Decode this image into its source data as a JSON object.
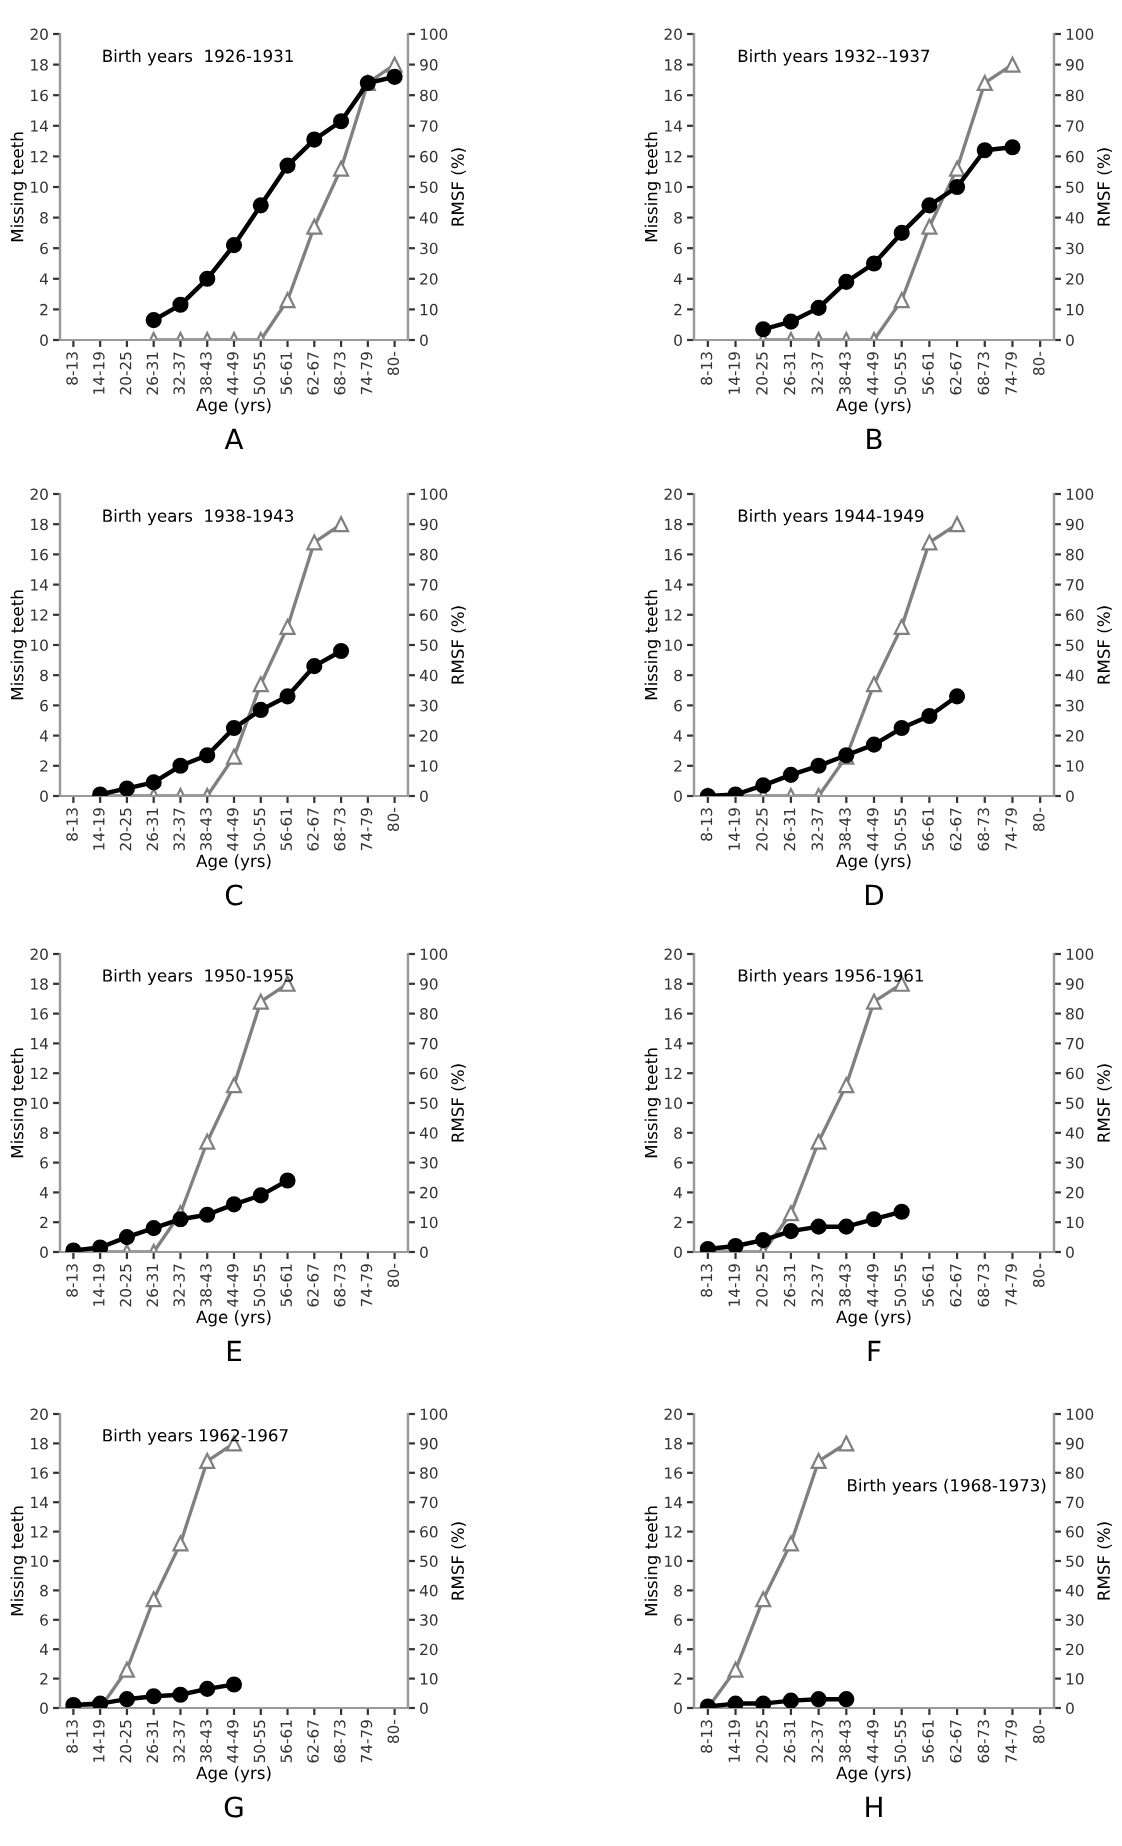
{
  "chart_data": [
    {
      "type": "line",
      "title": "A",
      "annotations": [
        "Birth years  1926-1931"
      ],
      "xlabel": "Age (yrs)",
      "ylabel": "Missing teeth",
      "y2label": "RMSF (%)",
      "categories": [
        "8-13",
        "14-19",
        "20-25",
        "26-31",
        "32-37",
        "38-43",
        "44-49",
        "50-55",
        "56-61",
        "62-67",
        "68-73",
        "74-79",
        "80-"
      ],
      "ylim": [
        0,
        20
      ],
      "yticks": [
        0,
        2,
        4,
        6,
        8,
        10,
        12,
        14,
        16,
        18,
        20
      ],
      "y2lim": [
        0,
        100
      ],
      "y2ticks": [
        0,
        10,
        20,
        30,
        40,
        50,
        60,
        70,
        80,
        90,
        100
      ],
      "grid": false,
      "series": [
        {
          "color": "#808080",
          "axis": "y2",
          "marker": "triangle",
          "values": [
            null,
            null,
            null,
            0,
            0,
            0,
            0,
            0,
            13,
            37,
            56,
            84,
            90
          ]
        },
        {
          "color": "#000000",
          "marker": "circle",
          "values": [
            null,
            null,
            null,
            1.3,
            2.3,
            4.0,
            6.2,
            8.8,
            11.4,
            13.1,
            14.3,
            16.8,
            17.2
          ]
        }
      ]
    },
    {
      "type": "line",
      "title": "B",
      "annotations": [
        "Birth years 1932--1937"
      ],
      "xlabel": "Age (yrs)",
      "ylabel": "Missing teeth",
      "y2label": "RMSF (%)",
      "categories": [
        "8-13",
        "14-19",
        "20-25",
        "26-31",
        "32-37",
        "38-43",
        "44-49",
        "50-55",
        "56-61",
        "62-67",
        "68-73",
        "74-79",
        "80-"
      ],
      "ylim": [
        0,
        20
      ],
      "yticks": [
        0,
        2,
        4,
        6,
        8,
        10,
        12,
        14,
        16,
        18,
        20
      ],
      "y2lim": [
        0,
        100
      ],
      "y2ticks": [
        0,
        10,
        20,
        30,
        40,
        50,
        60,
        70,
        80,
        90,
        100
      ],
      "grid": false,
      "series": [
        {
          "color": "#808080",
          "axis": "y2",
          "marker": "triangle",
          "values": [
            null,
            null,
            0,
            0,
            0,
            0,
            0,
            13,
            37,
            56,
            84,
            90,
            null
          ]
        },
        {
          "color": "#000000",
          "marker": "circle",
          "values": [
            null,
            null,
            0.7,
            1.2,
            2.1,
            3.8,
            5.0,
            7.0,
            8.8,
            10.0,
            12.4,
            12.6,
            null
          ]
        }
      ]
    },
    {
      "type": "line",
      "title": "C",
      "annotations": [
        "Birth years  1938-1943"
      ],
      "xlabel": "Age (yrs)",
      "ylabel": "Missing teeth",
      "y2label": "RMSF (%)",
      "categories": [
        "8-13",
        "14-19",
        "20-25",
        "26-31",
        "32-37",
        "38-43",
        "44-49",
        "50-55",
        "56-61",
        "62-67",
        "68-73",
        "74-79",
        "80-"
      ],
      "ylim": [
        0,
        20
      ],
      "yticks": [
        0,
        2,
        4,
        6,
        8,
        10,
        12,
        14,
        16,
        18,
        20
      ],
      "y2lim": [
        0,
        100
      ],
      "y2ticks": [
        0,
        10,
        20,
        30,
        40,
        50,
        60,
        70,
        80,
        90,
        100
      ],
      "grid": false,
      "series": [
        {
          "color": "#808080",
          "axis": "y2",
          "marker": "triangle",
          "values": [
            null,
            0,
            0,
            0,
            0,
            0,
            13,
            37,
            56,
            84,
            90,
            null,
            null
          ]
        },
        {
          "color": "#000000",
          "marker": "circle",
          "values": [
            null,
            0.1,
            0.5,
            0.9,
            2.0,
            2.7,
            4.5,
            5.7,
            6.6,
            8.6,
            9.6,
            null,
            null
          ]
        }
      ]
    },
    {
      "type": "line",
      "title": "D",
      "annotations": [
        "Birth years 1944-1949"
      ],
      "xlabel": "Age (yrs)",
      "ylabel": "Missing teeth",
      "y2label": "RMSF (%)",
      "categories": [
        "8-13",
        "14-19",
        "20-25",
        "26-31",
        "32-37",
        "38-43",
        "44-49",
        "50-55",
        "56-61",
        "62-67",
        "68-73",
        "74-79",
        "80-"
      ],
      "ylim": [
        0,
        20
      ],
      "yticks": [
        0,
        2,
        4,
        6,
        8,
        10,
        12,
        14,
        16,
        18,
        20
      ],
      "y2lim": [
        0,
        100
      ],
      "y2ticks": [
        0,
        10,
        20,
        30,
        40,
        50,
        60,
        70,
        80,
        90,
        100
      ],
      "grid": false,
      "series": [
        {
          "color": "#808080",
          "axis": "y2",
          "marker": "triangle",
          "values": [
            0,
            0,
            0,
            0,
            0,
            13,
            37,
            56,
            84,
            90,
            null,
            null,
            null
          ]
        },
        {
          "color": "#000000",
          "marker": "circle",
          "values": [
            0,
            0.1,
            0.7,
            1.4,
            2.0,
            2.7,
            3.4,
            4.5,
            5.3,
            6.6,
            null,
            null,
            null
          ]
        }
      ]
    },
    {
      "type": "line",
      "title": "E",
      "annotations": [
        "Birth years  1950-1955"
      ],
      "xlabel": "Age (yrs)",
      "ylabel": "Missing teeth",
      "y2label": "RMSF (%)",
      "categories": [
        "8-13",
        "14-19",
        "20-25",
        "26-31",
        "32-37",
        "38-43",
        "44-49",
        "50-55",
        "56-61",
        "62-67",
        "68-73",
        "74-79",
        "80-"
      ],
      "ylim": [
        0,
        20
      ],
      "yticks": [
        0,
        2,
        4,
        6,
        8,
        10,
        12,
        14,
        16,
        18,
        20
      ],
      "y2lim": [
        0,
        100
      ],
      "y2ticks": [
        0,
        10,
        20,
        30,
        40,
        50,
        60,
        70,
        80,
        90,
        100
      ],
      "grid": false,
      "series": [
        {
          "color": "#808080",
          "axis": "y2",
          "marker": "triangle",
          "values": [
            0,
            0,
            0,
            0,
            13,
            37,
            56,
            84,
            90,
            null,
            null,
            null,
            null
          ]
        },
        {
          "color": "#000000",
          "marker": "circle",
          "values": [
            0.1,
            0.3,
            1.0,
            1.6,
            2.2,
            2.5,
            3.2,
            3.8,
            4.8,
            null,
            null,
            null,
            null
          ]
        }
      ]
    },
    {
      "type": "line",
      "title": "F",
      "annotations": [
        "Birth years 1956-1961"
      ],
      "xlabel": "Age (yrs)",
      "ylabel": "Missing teeth",
      "y2label": "RMSF (%)",
      "categories": [
        "8-13",
        "14-19",
        "20-25",
        "26-31",
        "32-37",
        "38-43",
        "44-49",
        "50-55",
        "56-61",
        "62-67",
        "68-73",
        "74-79",
        "80-"
      ],
      "ylim": [
        0,
        20
      ],
      "yticks": [
        0,
        2,
        4,
        6,
        8,
        10,
        12,
        14,
        16,
        18,
        20
      ],
      "y2lim": [
        0,
        100
      ],
      "y2ticks": [
        0,
        10,
        20,
        30,
        40,
        50,
        60,
        70,
        80,
        90,
        100
      ],
      "grid": false,
      "series": [
        {
          "color": "#808080",
          "axis": "y2",
          "marker": "triangle",
          "values": [
            0,
            0,
            0,
            13,
            37,
            56,
            84,
            90,
            null,
            null,
            null,
            null,
            null
          ]
        },
        {
          "color": "#000000",
          "marker": "circle",
          "values": [
            0.2,
            0.4,
            0.8,
            1.4,
            1.7,
            1.7,
            2.2,
            2.7,
            null,
            null,
            null,
            null,
            null
          ]
        }
      ]
    },
    {
      "type": "line",
      "title": "G",
      "annotations": [
        "Birth years 1962-1967"
      ],
      "xlabel": "Age (yrs)",
      "ylabel": "Missing teeth",
      "y2label": "RMSF (%)",
      "categories": [
        "8-13",
        "14-19",
        "20-25",
        "26-31",
        "32-37",
        "38-43",
        "44-49",
        "50-55",
        "56-61",
        "62-67",
        "68-73",
        "74-79",
        "80-"
      ],
      "ylim": [
        0,
        20
      ],
      "yticks": [
        0,
        2,
        4,
        6,
        8,
        10,
        12,
        14,
        16,
        18,
        20
      ],
      "y2lim": [
        0,
        100
      ],
      "y2ticks": [
        0,
        10,
        20,
        30,
        40,
        50,
        60,
        70,
        80,
        90,
        100
      ],
      "grid": false,
      "series": [
        {
          "color": "#808080",
          "axis": "y2",
          "marker": "triangle",
          "values": [
            0,
            0,
            13,
            37,
            56,
            84,
            90,
            null,
            null,
            null,
            null,
            null,
            null
          ]
        },
        {
          "color": "#000000",
          "marker": "circle",
          "values": [
            0.2,
            0.3,
            0.6,
            0.8,
            0.9,
            1.3,
            1.6,
            null,
            null,
            null,
            null,
            null,
            null
          ]
        }
      ]
    },
    {
      "type": "line",
      "title": "H",
      "annotations": [
        "Birth years (1968-1973)"
      ],
      "xlabel": "Age (yrs)",
      "ylabel": "Missing teeth",
      "y2label": "RMSF (%)",
      "categories": [
        "8-13",
        "14-19",
        "20-25",
        "26-31",
        "32-37",
        "38-43",
        "44-49",
        "50-55",
        "56-61",
        "62-67",
        "68-73",
        "74-79",
        "80-"
      ],
      "ylim": [
        0,
        20
      ],
      "yticks": [
        0,
        2,
        4,
        6,
        8,
        10,
        12,
        14,
        16,
        18,
        20
      ],
      "y2lim": [
        0,
        100
      ],
      "y2ticks": [
        0,
        10,
        20,
        30,
        40,
        50,
        60,
        70,
        80,
        90,
        100
      ],
      "grid": false,
      "series": [
        {
          "color": "#808080",
          "axis": "y2",
          "marker": "triangle",
          "values": [
            0,
            13,
            37,
            56,
            84,
            90,
            null,
            null,
            null,
            null,
            null,
            null,
            null
          ]
        },
        {
          "color": "#000000",
          "marker": "circle",
          "values": [
            0.1,
            0.3,
            0.3,
            0.5,
            0.6,
            0.6,
            null,
            null,
            null,
            null,
            null,
            null,
            null
          ]
        }
      ]
    }
  ]
}
